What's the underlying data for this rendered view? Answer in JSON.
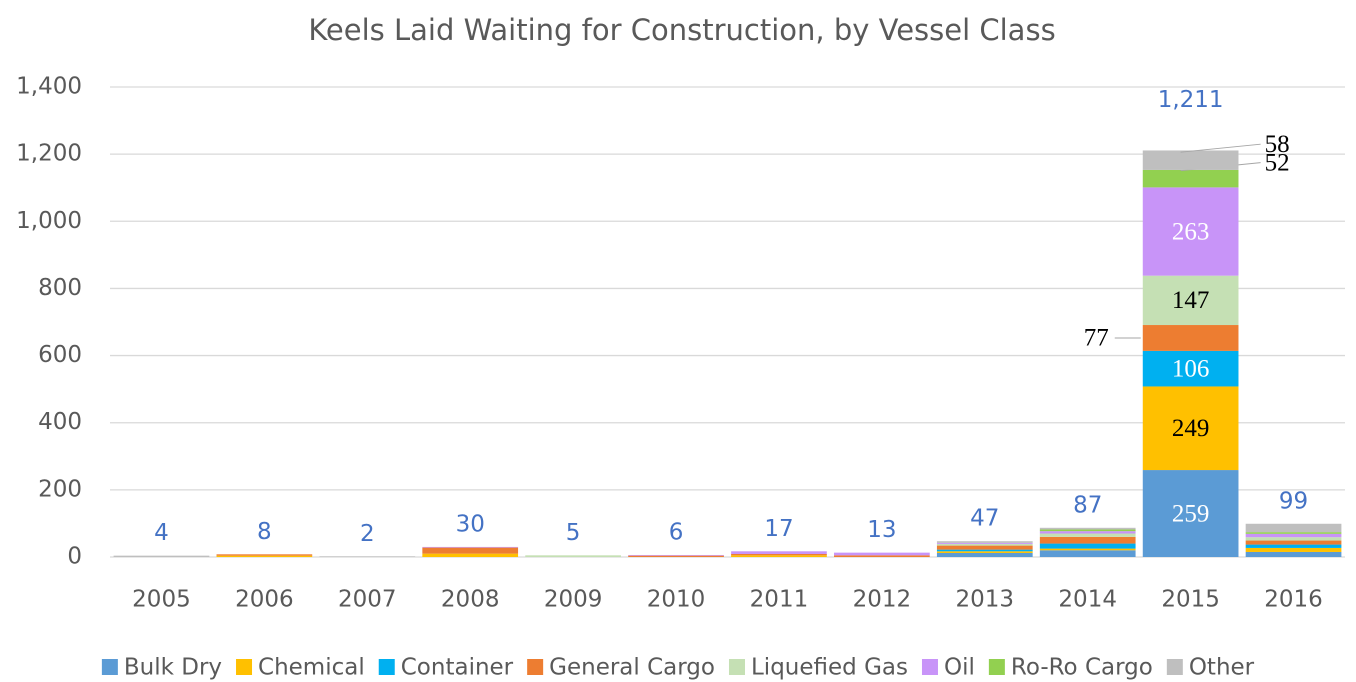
{
  "chart_data": {
    "type": "stacked_bar",
    "title": "Keels Laid Waiting for Construction, by Vessel Class",
    "categories": [
      "2005",
      "2006",
      "2007",
      "2008",
      "2009",
      "2010",
      "2011",
      "2012",
      "2013",
      "2014",
      "2015",
      "2016"
    ],
    "series": [
      {
        "name": "Bulk Dry",
        "color": "#5b9bd5",
        "values": [
          0,
          0,
          0,
          0,
          0,
          0,
          0,
          0,
          12,
          20,
          259,
          15
        ],
        "value_labels": [
          null,
          null,
          null,
          null,
          null,
          null,
          null,
          null,
          null,
          null,
          "259",
          null
        ]
      },
      {
        "name": "Chemical",
        "color": "#ffc000",
        "values": [
          0,
          4,
          0,
          10,
          0,
          0,
          5,
          0,
          5,
          5,
          249,
          12
        ],
        "value_labels": [
          null,
          null,
          null,
          null,
          null,
          null,
          null,
          null,
          null,
          null,
          "249",
          null
        ]
      },
      {
        "name": "Container",
        "color": "#00b0f0",
        "values": [
          0,
          0,
          0,
          0,
          0,
          0,
          0,
          0,
          5,
          15,
          106,
          10
        ],
        "value_labels": [
          null,
          null,
          null,
          null,
          null,
          null,
          null,
          null,
          null,
          null,
          "106",
          null
        ]
      },
      {
        "name": "General Cargo",
        "color": "#ed7d31",
        "values": [
          0,
          4,
          0,
          18,
          0,
          4,
          4,
          5,
          12,
          20,
          77,
          12
        ],
        "value_labels": [
          null,
          null,
          null,
          null,
          null,
          null,
          null,
          null,
          null,
          null,
          "77",
          null
        ]
      },
      {
        "name": "Liquefied Gas",
        "color": "#c5e0b4",
        "values": [
          0,
          0,
          0,
          0,
          5,
          0,
          0,
          0,
          5,
          10,
          147,
          10
        ],
        "value_labels": [
          null,
          null,
          null,
          null,
          null,
          null,
          null,
          null,
          null,
          null,
          "147",
          null
        ]
      },
      {
        "name": "Oil",
        "color": "#c894f8",
        "values": [
          0,
          0,
          0,
          2,
          0,
          2,
          8,
          8,
          3,
          7,
          263,
          10
        ],
        "value_labels": [
          null,
          null,
          null,
          null,
          null,
          null,
          null,
          null,
          null,
          null,
          "263",
          null
        ]
      },
      {
        "name": "Ro-Ro Cargo",
        "color": "#92d050",
        "values": [
          0,
          0,
          0,
          0,
          0,
          0,
          0,
          0,
          0,
          5,
          52,
          5
        ],
        "value_labels": [
          null,
          null,
          null,
          null,
          null,
          null,
          null,
          null,
          null,
          null,
          "52",
          null
        ]
      },
      {
        "name": "Other",
        "color": "#bfbfbf",
        "values": [
          4,
          0,
          2,
          0,
          0,
          0,
          0,
          0,
          5,
          5,
          58,
          25
        ],
        "value_labels": [
          null,
          null,
          null,
          null,
          null,
          null,
          null,
          null,
          null,
          null,
          "58",
          null
        ]
      }
    ],
    "totals": [
      4,
      8,
      2,
      30,
      5,
      6,
      17,
      13,
      47,
      87,
      {
        "value": 1211,
        "label": "1,211"
      },
      99
    ],
    "ylim": [
      0,
      1400
    ],
    "yticks": [
      0,
      200,
      400,
      600,
      800,
      {
        "value": 1000,
        "label": "1,000"
      },
      {
        "value": 1200,
        "label": "1,200"
      },
      {
        "value": 1400,
        "label": "1,400"
      }
    ],
    "grid": true,
    "legend": "bottom"
  }
}
